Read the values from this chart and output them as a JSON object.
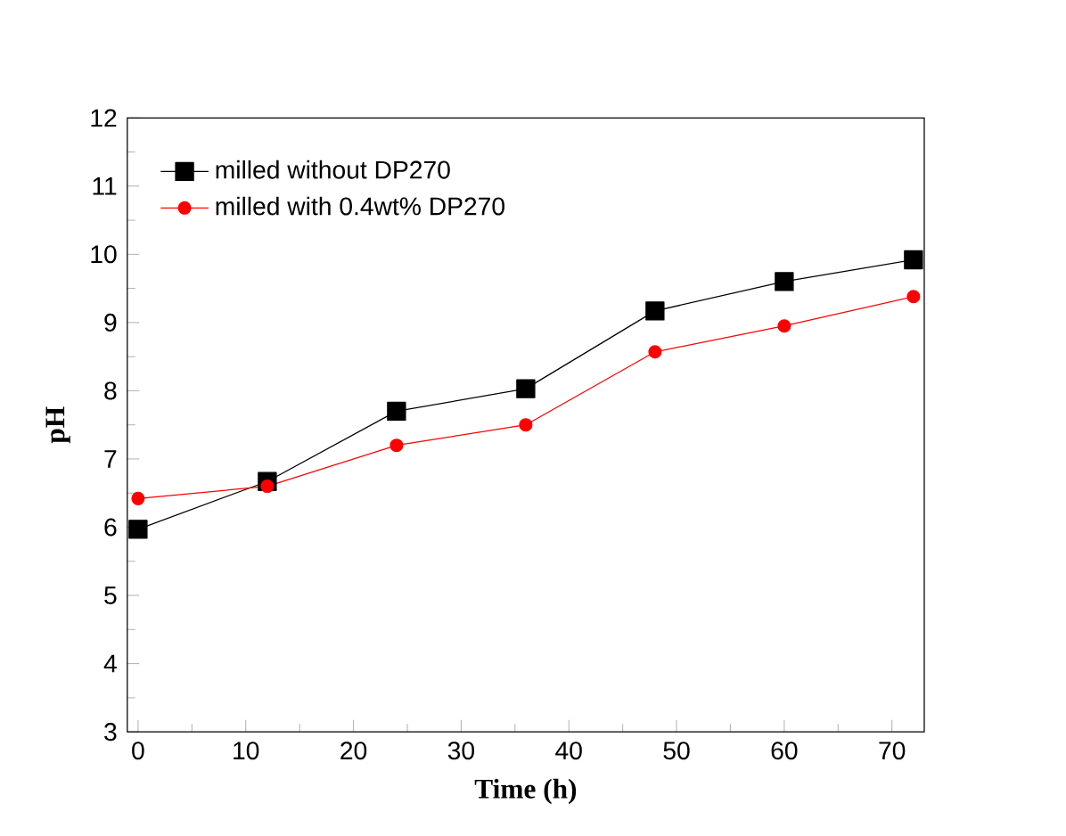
{
  "chart_data": {
    "type": "line",
    "xlabel": "Time (h)",
    "ylabel": "pH",
    "x": [
      0,
      12,
      24,
      36,
      48,
      60,
      72
    ],
    "series": [
      {
        "name": "milled without DP270",
        "color": "#000000",
        "marker": "square",
        "values": [
          5.97,
          6.67,
          7.7,
          8.03,
          9.17,
          9.6,
          9.92
        ]
      },
      {
        "name": "milled with 0.4wt% DP270",
        "color": "#ff0000",
        "marker": "circle",
        "values": [
          6.42,
          6.6,
          7.2,
          7.5,
          8.57,
          8.95,
          9.38
        ]
      }
    ],
    "xlim": [
      -1,
      73
    ],
    "ylim": [
      3,
      12
    ],
    "xticks": [
      0,
      10,
      20,
      30,
      40,
      50,
      60,
      70
    ],
    "yticks": [
      3,
      4,
      5,
      6,
      7,
      8,
      9,
      10,
      11,
      12
    ],
    "legend": "top left",
    "grid": false,
    "line_style": "solid"
  }
}
